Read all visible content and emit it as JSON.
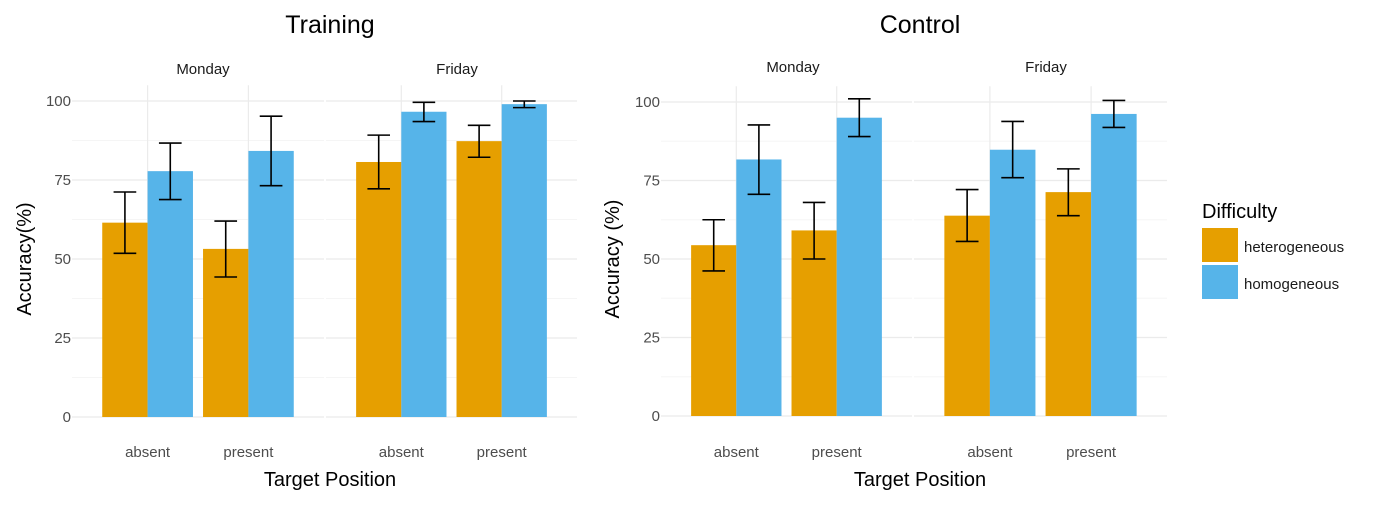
{
  "colors": {
    "heterogeneous": "#E69F00",
    "homogeneous": "#56B4E9",
    "grid_major": "#EBEBEB",
    "grid_minor": "#F5F5F5",
    "errorbar": "#000000"
  },
  "legend": {
    "title": "Difficulty",
    "placement": "right",
    "items": [
      "heterogeneous",
      "homogeneous"
    ]
  },
  "chart_data": [
    {
      "type": "bar",
      "title": "Training",
      "xlabel": "Target Position",
      "ylabel": "Accuracy(%)",
      "ylim": [
        0,
        105
      ],
      "yticks": [
        0,
        25,
        50,
        75,
        100
      ],
      "grid": true,
      "categories": [
        "absent",
        "present"
      ],
      "facets": [
        {
          "label": "Monday",
          "series": [
            {
              "name": "heterogeneous",
              "values": [
                61.5,
                53.2
              ],
              "err_low": [
                51.8,
                44.3
              ],
              "err_high": [
                71.2,
                62.0
              ]
            },
            {
              "name": "homogeneous",
              "values": [
                77.8,
                84.2
              ],
              "err_low": [
                68.8,
                73.2
              ],
              "err_high": [
                86.7,
                95.2
              ]
            }
          ]
        },
        {
          "label": "Friday",
          "series": [
            {
              "name": "heterogeneous",
              "values": [
                80.7,
                87.3
              ],
              "err_low": [
                72.2,
                82.2
              ],
              "err_high": [
                89.2,
                92.3
              ]
            },
            {
              "name": "homogeneous",
              "values": [
                96.6,
                99.0
              ],
              "err_low": [
                93.5,
                97.9
              ],
              "err_high": [
                99.6,
                100.0
              ]
            }
          ]
        }
      ]
    },
    {
      "type": "bar",
      "title": "Control",
      "xlabel": "Target Position",
      "ylabel": "Accuracy (%)",
      "ylim": [
        0,
        105
      ],
      "yticks": [
        0,
        25,
        50,
        75,
        100
      ],
      "grid": true,
      "categories": [
        "absent",
        "present"
      ],
      "facets": [
        {
          "label": "Monday",
          "series": [
            {
              "name": "heterogeneous",
              "values": [
                54.4,
                59.1
              ],
              "err_low": [
                46.2,
                50.0
              ],
              "err_high": [
                62.5,
                68.0
              ]
            },
            {
              "name": "homogeneous",
              "values": [
                81.7,
                95.0
              ],
              "err_low": [
                70.6,
                89.0
              ],
              "err_high": [
                92.7,
                101.0
              ]
            }
          ]
        },
        {
          "label": "Friday",
          "series": [
            {
              "name": "heterogeneous",
              "values": [
                63.8,
                71.3
              ],
              "err_low": [
                55.6,
                63.8
              ],
              "err_high": [
                72.1,
                78.7
              ]
            },
            {
              "name": "homogeneous",
              "values": [
                84.8,
                96.2
              ],
              "err_low": [
                75.9,
                91.9
              ],
              "err_high": [
                93.8,
                100.5
              ]
            }
          ]
        }
      ]
    }
  ]
}
